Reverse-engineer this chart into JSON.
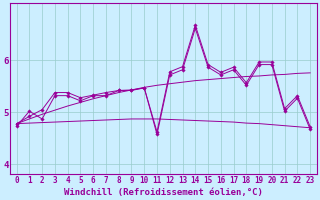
{
  "x": [
    0,
    1,
    2,
    3,
    4,
    5,
    6,
    7,
    8,
    9,
    10,
    11,
    12,
    13,
    14,
    15,
    16,
    17,
    18,
    19,
    20,
    21,
    22,
    23
  ],
  "line1": [
    4.78,
    4.92,
    5.05,
    5.38,
    5.38,
    5.28,
    5.33,
    5.38,
    5.42,
    5.43,
    5.47,
    4.62,
    5.78,
    5.88,
    6.68,
    5.92,
    5.77,
    5.87,
    5.57,
    5.97,
    5.97,
    5.07,
    5.32,
    4.72
  ],
  "line2": [
    4.73,
    5.02,
    4.87,
    5.32,
    5.32,
    5.22,
    5.32,
    5.32,
    5.42,
    5.42,
    5.47,
    4.57,
    5.72,
    5.82,
    6.62,
    5.87,
    5.72,
    5.82,
    5.52,
    5.92,
    5.92,
    5.02,
    5.27,
    4.67
  ],
  "trend_up": [
    4.78,
    4.87,
    4.96,
    5.04,
    5.12,
    5.19,
    5.26,
    5.32,
    5.38,
    5.43,
    5.48,
    5.52,
    5.55,
    5.58,
    5.61,
    5.63,
    5.65,
    5.67,
    5.69,
    5.7,
    5.72,
    5.73,
    5.75,
    5.76
  ],
  "trend_down": [
    4.78,
    4.79,
    4.8,
    4.81,
    4.82,
    4.83,
    4.84,
    4.85,
    4.86,
    4.87,
    4.87,
    4.87,
    4.86,
    4.85,
    4.84,
    4.83,
    4.82,
    4.81,
    4.79,
    4.78,
    4.76,
    4.74,
    4.72,
    4.7
  ],
  "line_color": "#990099",
  "bg_color": "#cceeff",
  "grid_color": "#99cccc",
  "xlabel": "Windchill (Refroidissement éolien,°C)",
  "xlim": [
    -0.5,
    23.5
  ],
  "ylim": [
    3.8,
    7.1
  ],
  "yticks": [
    4,
    5,
    6
  ],
  "xticks": [
    0,
    1,
    2,
    3,
    4,
    5,
    6,
    7,
    8,
    9,
    10,
    11,
    12,
    13,
    14,
    15,
    16,
    17,
    18,
    19,
    20,
    21,
    22,
    23
  ],
  "marker": "D",
  "markersize": 1.8,
  "linewidth": 0.7,
  "xlabel_fontsize": 6.5,
  "tick_fontsize": 5.5
}
